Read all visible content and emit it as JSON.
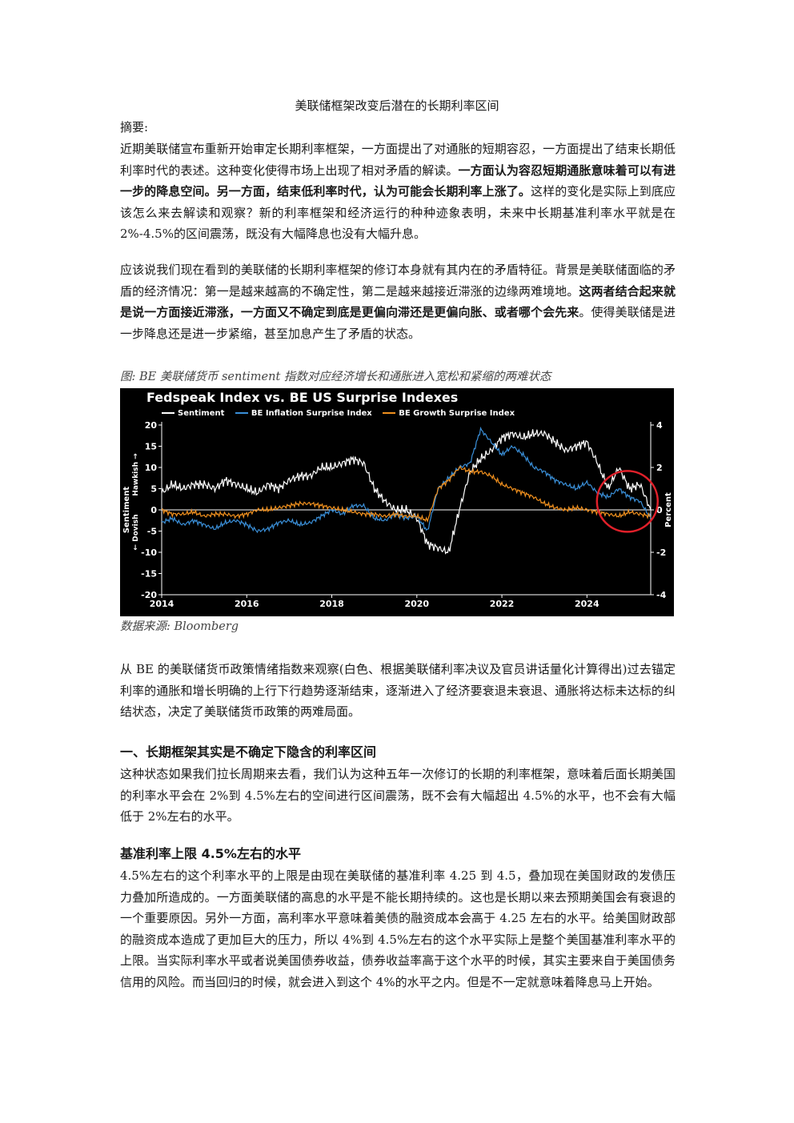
{
  "doc": {
    "title": "美联储框架改变后潜在的长期利率区间",
    "abstract_label": "摘要:",
    "p1_a": "近期美联储宣布重新开始审定长期利率框架，一方面提出了对通胀的短期容忍，一方面提出了结束长期低利率时代的表述。这种变化使得市场上出现了相对矛盾的解读。",
    "p1_b": "一方面认为容忍短期通胀意味着可以有进一步的降息空间。另一方面，结束低利率时代，认为可能会长期利率上涨了。",
    "p1_c": "这样的变化是实际上到底应该怎么来去解读和观察？新的利率框架和经济运行的种种迹象表明，未来中长期基准利率水平就是在 2%-4.5%的区间震荡，既没有大幅降息也没有大幅升息。",
    "p2_a": "应该说我们现在看到的美联储的长期利率框架的修订本身就有其内在的矛盾特征。背景是美联储面临的矛盾的经济情况：第一是越来越高的不确定性，第二是越来越接近滞涨的边缘两难境地。",
    "p2_b": "这两者结合起来就是说一方面接近滞涨，一方面又不确定到底是更偏向滞还是更偏向胀、或者哪个会先来",
    "p2_c": "。使得美联储是进一步降息还是进一步紧缩，甚至加息产生了矛盾的状态。",
    "fig_caption": "图: BE 美联储货币 sentiment 指数对应经济增长和通胀进入宽松和紧缩的两难状态",
    "source": "数据来源: Bloomberg",
    "p3": "从 BE 的美联储货币政策情绪指数来观察(白色、根据美联储利率决议及官员讲话量化计算得出)过去锚定利率的通胀和增长明确的上行下行趋势逐渐结束，逐渐进入了经济要衰退未衰退、通胀将达标未达标的纠结状态，决定了美联储货币政策的两难局面。",
    "h1": "一、长期框架其实是不确定下隐含的利率区间",
    "p4": "这种状态如果我们拉长周期来去看，我们认为这种五年一次修订的长期的利率框架，意味着后面长期美国的利率水平会在 2%到 4.5%左右的空间进行区间震荡，既不会有大幅超出 4.5%的水平，也不会有大幅低于 2%左右的水平。",
    "h2": "基准利率上限 4.5%左右的水平",
    "p5": "4.5%左右的这个利率水平的上限是由现在美联储的基准利率 4.25 到 4.5，叠加现在美国财政的发债压力叠加所造成的。一方面美联储的高息的水平是不能长期持续的。这也是长期以来去预期美国会有衰退的一个重要原因。另外一方面，高利率水平意味着美债的融资成本会高于 4.25 左右的水平。给美国财政部的融资成本造成了更加巨大的压力，所以 4%到 4.5%左右的这个水平实际上是整个美国基准利率水平的上限。当实际利率水平或者说美国债券收益，债券收益率高于这个水平的时候，其实主要来自于美国债务信用的风险。而当回归的时候，就会进入到这个 4%的水平之内。但是不一定就意味着降息马上开始。"
  },
  "chart_data": {
    "type": "line",
    "title": "Fedspeak Index vs. BE US Surprise Indexes",
    "left_axis_label": "Sentiment",
    "left_axis_top_hint": "Hawkish →",
    "left_axis_bottom_hint": "← Dovish",
    "right_axis_label": "Percent",
    "x_ticks": [
      "2014",
      "2016",
      "2018",
      "2020",
      "2022",
      "2024"
    ],
    "y_left_ticks": [
      "20",
      "15",
      "10",
      "5",
      "0",
      "-5",
      "-10",
      "-15",
      "-20"
    ],
    "y_right_ticks": [
      "4",
      "2",
      "0",
      "-2",
      "-4"
    ],
    "ylim_left": [
      -20,
      20
    ],
    "ylim_right": [
      -4,
      4
    ],
    "xlim": [
      2014.0,
      2025.5
    ],
    "colors": {
      "sentiment": "#ffffff",
      "inflation": "#3a8fd8",
      "growth": "#f0901e",
      "circle": "#e0202a"
    },
    "series": [
      {
        "name": "Sentiment",
        "axis": "left",
        "x": [
          2014.0,
          2014.25,
          2014.5,
          2014.75,
          2015.0,
          2015.25,
          2015.5,
          2015.75,
          2016.0,
          2016.25,
          2016.5,
          2016.75,
          2017.0,
          2017.25,
          2017.5,
          2017.75,
          2018.0,
          2018.25,
          2018.5,
          2018.75,
          2019.0,
          2019.25,
          2019.5,
          2019.75,
          2020.0,
          2020.25,
          2020.5,
          2020.75,
          2021.0,
          2021.25,
          2021.5,
          2021.75,
          2022.0,
          2022.25,
          2022.5,
          2022.75,
          2023.0,
          2023.25,
          2023.5,
          2023.75,
          2024.0,
          2024.25,
          2024.5,
          2024.75,
          2025.0,
          2025.25,
          2025.5
        ],
        "values": [
          4,
          6,
          5,
          6,
          6,
          5,
          7,
          6,
          5,
          4,
          6,
          5,
          7,
          8,
          8,
          10,
          10,
          11,
          12,
          11,
          5,
          2,
          0,
          0,
          -2,
          -8,
          -9,
          -10,
          0,
          9,
          12,
          14,
          17,
          18,
          17,
          18,
          18,
          16,
          14,
          15,
          16,
          11,
          5,
          10,
          5,
          6,
          0
        ]
      },
      {
        "name": "BE Inflation Surprise Index",
        "axis": "right",
        "x": [
          2014.0,
          2014.25,
          2014.5,
          2014.75,
          2015.0,
          2015.25,
          2015.5,
          2015.75,
          2016.0,
          2016.25,
          2016.5,
          2016.75,
          2017.0,
          2017.25,
          2017.5,
          2017.75,
          2018.0,
          2018.25,
          2018.5,
          2018.75,
          2019.0,
          2019.25,
          2019.5,
          2019.75,
          2020.0,
          2020.25,
          2020.5,
          2020.75,
          2021.0,
          2021.25,
          2021.5,
          2021.75,
          2022.0,
          2022.25,
          2022.5,
          2022.75,
          2023.0,
          2023.25,
          2023.5,
          2023.75,
          2024.0,
          2024.25,
          2024.5,
          2024.75,
          2025.0,
          2025.25,
          2025.5
        ],
        "values": [
          -0.6,
          -0.4,
          -0.7,
          -0.5,
          -0.7,
          -0.9,
          -0.6,
          -0.5,
          -0.7,
          -1.0,
          -0.9,
          -0.6,
          -0.5,
          -0.7,
          -0.6,
          -0.3,
          0.0,
          -0.2,
          0.2,
          0.2,
          -0.4,
          -0.5,
          -0.2,
          -0.4,
          -0.3,
          -1.0,
          1.0,
          1.5,
          2.0,
          2.2,
          3.8,
          3.2,
          2.6,
          3.0,
          2.6,
          2.0,
          1.8,
          1.4,
          1.2,
          1.0,
          1.3,
          0.8,
          0.6,
          1.0,
          0.6,
          0.4,
          -0.4
        ]
      },
      {
        "name": "BE Growth Surprise Index",
        "axis": "right",
        "x": [
          2014.0,
          2014.25,
          2014.5,
          2014.75,
          2015.0,
          2015.25,
          2015.5,
          2015.75,
          2016.0,
          2016.25,
          2016.5,
          2016.75,
          2017.0,
          2017.25,
          2017.5,
          2017.75,
          2018.0,
          2018.25,
          2018.5,
          2018.75,
          2019.0,
          2019.25,
          2019.5,
          2019.75,
          2020.0,
          2020.25,
          2020.5,
          2020.75,
          2021.0,
          2021.25,
          2021.5,
          2021.75,
          2022.0,
          2022.25,
          2022.5,
          2022.75,
          2023.0,
          2023.25,
          2023.5,
          2023.75,
          2024.0,
          2024.25,
          2024.5,
          2024.75,
          2025.0,
          2025.25,
          2025.5
        ],
        "values": [
          0.0,
          -0.2,
          -0.2,
          -0.1,
          -0.3,
          -0.2,
          -0.2,
          -0.3,
          -0.2,
          0.0,
          0.0,
          0.1,
          0.2,
          0.3,
          0.3,
          0.2,
          0.1,
          0.0,
          -0.1,
          -0.2,
          -0.2,
          -0.3,
          -0.2,
          -0.3,
          -0.3,
          -0.5,
          1.0,
          1.4,
          2.0,
          1.8,
          1.8,
          1.6,
          1.2,
          1.0,
          0.8,
          0.6,
          0.3,
          0.1,
          0.0,
          0.1,
          0.0,
          -0.1,
          -0.2,
          -0.3,
          -0.1,
          -0.2,
          -0.3
        ]
      }
    ],
    "annotation": "red circle around 2024-2025 (recent divergence)"
  }
}
